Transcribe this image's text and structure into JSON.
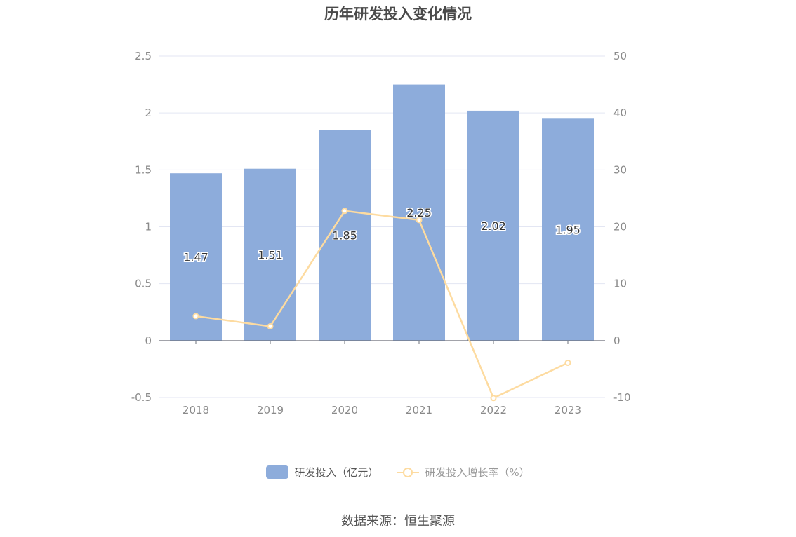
{
  "chart_data": {
    "type": "bar",
    "title": "历年研发投入变化情况",
    "categories": [
      "2018",
      "2019",
      "2020",
      "2021",
      "2022",
      "2023"
    ],
    "series": [
      {
        "name": "研发投入（亿元）",
        "type": "bar",
        "axis": "left",
        "values": [
          1.47,
          1.51,
          1.85,
          2.25,
          2.02,
          1.95
        ],
        "data_labels": [
          "1.47",
          "1.51",
          "1.85",
          "2.25",
          "2.02",
          "1.95"
        ],
        "color": "#8dacdb"
      },
      {
        "name": "研发投入增长率（%）",
        "type": "line",
        "axis": "right",
        "values": [
          4.3,
          2.5,
          22.8,
          21.2,
          -10.1,
          -3.9
        ],
        "color": "#fddba0"
      }
    ],
    "y_left": {
      "range": [
        -0.5,
        2.5
      ],
      "ticks": [
        "2.5",
        "2",
        "1.5",
        "1",
        "0.5",
        "0",
        "-0.5"
      ]
    },
    "y_right": {
      "range": [
        -10,
        50
      ],
      "ticks": [
        "50",
        "40",
        "30",
        "20",
        "10",
        "0",
        "-10"
      ]
    },
    "grid": true,
    "legend_position": "bottom"
  },
  "source_text": "数据来源：恒生聚源"
}
